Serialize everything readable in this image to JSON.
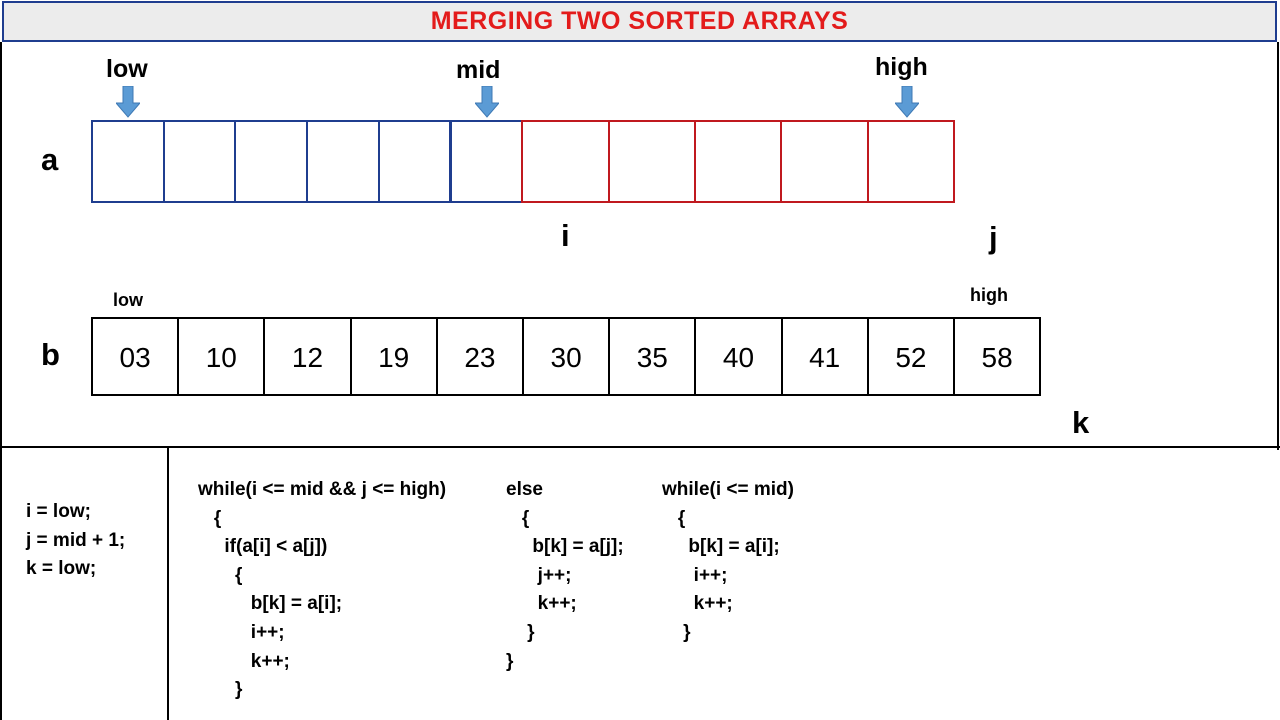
{
  "title": "MERGING TWO SORTED ARRAYS",
  "array_a": {
    "name": "a",
    "pointer_labels": {
      "low": "low",
      "mid": "mid",
      "high": "high"
    },
    "cell_count": 11,
    "left_count": 6,
    "index_labels": {
      "i": "i",
      "j": "j"
    },
    "colors": {
      "left": "#1f3d8f",
      "right": "#c0191f",
      "arrow": "#5b9bd5"
    }
  },
  "array_b": {
    "name": "b",
    "values": [
      "03",
      "10",
      "12",
      "19",
      "23",
      "30",
      "35",
      "40",
      "41",
      "52",
      "58"
    ],
    "low_label": "low",
    "high_label": "high",
    "k_label": "k"
  },
  "code": {
    "init": [
      "i = low;",
      "j = mid + 1;",
      "k = low;"
    ],
    "loop": [
      "while(i <= mid && j <= high)",
      "   {",
      "     if(a[i] < a[j])",
      "       {",
      "          b[k] = a[i];",
      "          i++;",
      "          k++;",
      "       }"
    ],
    "else_block": [
      "else",
      "   {",
      "     b[k] = a[j];",
      "      j++;",
      "      k++;",
      "    }",
      "}"
    ],
    "tail": [
      "while(i <= mid)",
      "   {",
      "     b[k] = a[i];",
      "      i++;",
      "      k++;",
      "    }"
    ]
  }
}
